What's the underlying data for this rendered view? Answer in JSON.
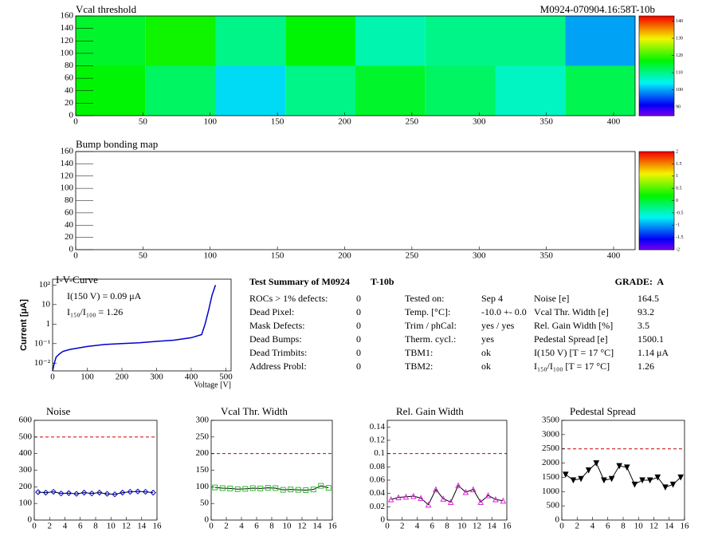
{
  "chart_data": [
    {
      "type": "heatmap",
      "title": "Vcal threshold",
      "corner_label": "M0924-070904.16:58T-10b",
      "x_bins": [
        0,
        52,
        104,
        156,
        208,
        260,
        312,
        364,
        416
      ],
      "y_bins": [
        0,
        80,
        160
      ],
      "z": [
        [
          117,
          112,
          103,
          110,
          115,
          112,
          107,
          113
        ],
        [
          115,
          118,
          110,
          117,
          108,
          110,
          110,
          100
        ]
      ],
      "xlim": [
        0,
        416
      ],
      "ylim": [
        0,
        160
      ],
      "xticks": [
        0,
        50,
        100,
        150,
        200,
        250,
        300,
        350,
        400
      ],
      "yticks": [
        0,
        20,
        40,
        60,
        80,
        100,
        120,
        140,
        160
      ],
      "zlim": [
        85,
        143
      ],
      "zticks": [
        90,
        100,
        110,
        120,
        130,
        140
      ]
    },
    {
      "type": "heatmap",
      "title": "Bump bonding map",
      "xlim": [
        0,
        416
      ],
      "ylim": [
        0,
        160
      ],
      "xticks": [
        0,
        50,
        100,
        150,
        200,
        250,
        300,
        350,
        400
      ],
      "yticks": [
        0,
        20,
        40,
        60,
        80,
        100,
        120,
        140,
        160
      ],
      "zlim": [
        -2,
        2
      ],
      "zticks": [
        -2,
        -1.5,
        -1,
        -0.5,
        0,
        0.5,
        1,
        1.5,
        2
      ]
    },
    {
      "type": "line",
      "title": "I-V-Curve",
      "x_label": "Voltage [V]",
      "y_label": "Current [μA]",
      "color": "#0000cc",
      "log_y": true,
      "annotations": [
        "I(150 V) = 0.09 μA",
        "I₁₅₀/I₁₀₀ =  1.26"
      ],
      "x": [
        0,
        5,
        10,
        20,
        30,
        50,
        100,
        150,
        200,
        250,
        300,
        350,
        400,
        430,
        440,
        450,
        460,
        470
      ],
      "values": [
        0.004,
        0.01,
        0.02,
        0.03,
        0.04,
        0.05,
        0.071,
        0.09,
        0.1,
        0.11,
        0.13,
        0.15,
        0.2,
        0.29,
        1,
        5,
        30,
        100
      ],
      "xlim": [
        0,
        515
      ],
      "ylim": [
        0.004,
        200
      ],
      "xticks": [
        0,
        100,
        200,
        300,
        400,
        500
      ],
      "yticks": [
        {
          "value": 0.01,
          "label": "10⁻²"
        },
        {
          "value": 0.1,
          "label": "10⁻¹"
        },
        1,
        10,
        {
          "value": 100,
          "label": "10²"
        }
      ]
    },
    {
      "type": "marker-line",
      "title": "Noise",
      "color": "#0000cc",
      "marker": "diamond",
      "reference_line": 500,
      "x": [
        0.5,
        1.5,
        2.5,
        3.5,
        4.5,
        5.5,
        6.5,
        7.5,
        8.5,
        9.5,
        10.5,
        11.5,
        12.5,
        13.5,
        14.5,
        15.5
      ],
      "values": [
        168,
        165,
        170,
        160,
        162,
        158,
        165,
        160,
        165,
        158,
        155,
        165,
        170,
        172,
        170,
        165
      ],
      "xlim": [
        0,
        16
      ],
      "ylim": [
        0,
        600
      ],
      "xticks": [
        0,
        2,
        4,
        6,
        8,
        10,
        12,
        14,
        16
      ],
      "yticks": [
        0,
        100,
        200,
        300,
        400,
        500,
        600
      ]
    },
    {
      "type": "marker-line",
      "title": "Vcal Thr. Width",
      "color": "#33bb33",
      "marker": "square",
      "reference_line": 200,
      "x": [
        0.5,
        1.5,
        2.5,
        3.5,
        4.5,
        5.5,
        6.5,
        7.5,
        8.5,
        9.5,
        10.5,
        11.5,
        12.5,
        13.5,
        14.5,
        15.5
      ],
      "values": [
        98,
        96,
        95,
        93,
        94,
        96,
        95,
        97,
        96,
        91,
        92,
        91,
        90,
        92,
        103,
        97
      ],
      "xlim": [
        0,
        16
      ],
      "ylim": [
        0,
        300
      ],
      "xticks": [
        0,
        2,
        4,
        6,
        8,
        10,
        12,
        14,
        16
      ],
      "yticks": [
        0,
        50,
        100,
        150,
        200,
        250,
        300
      ]
    },
    {
      "type": "marker-line",
      "title": "Rel. Gain Width",
      "color": "#dd22dd",
      "marker": "triangle",
      "reference_line": 0.1,
      "x": [
        0.5,
        1.5,
        2.5,
        3.5,
        4.5,
        5.5,
        6.5,
        7.5,
        8.5,
        9.5,
        10.5,
        11.5,
        12.5,
        13.5,
        14.5,
        15.5
      ],
      "values": [
        0.031,
        0.034,
        0.035,
        0.036,
        0.033,
        0.023,
        0.046,
        0.032,
        0.027,
        0.052,
        0.042,
        0.046,
        0.027,
        0.037,
        0.031,
        0.029
      ],
      "xlim": [
        0,
        16
      ],
      "ylim": [
        0,
        0.15
      ],
      "xticks": [
        0,
        2,
        4,
        6,
        8,
        10,
        12,
        14,
        16
      ],
      "yticks": [
        0,
        0.02,
        0.04,
        0.06,
        0.08,
        0.1,
        0.12,
        0.14
      ]
    },
    {
      "type": "marker-line",
      "title": "Pedestal Spread",
      "color": "#000000",
      "marker": "triangle-down",
      "reference_line": 2500,
      "x": [
        0.5,
        1.5,
        2.5,
        3.5,
        4.5,
        5.5,
        6.5,
        7.5,
        8.5,
        9.5,
        10.5,
        11.5,
        12.5,
        13.5,
        14.5,
        15.5
      ],
      "values": [
        1600,
        1400,
        1450,
        1750,
        2000,
        1400,
        1450,
        1900,
        1850,
        1250,
        1400,
        1400,
        1500,
        1150,
        1250,
        1500
      ],
      "xlim": [
        0,
        16
      ],
      "ylim": [
        0,
        3500
      ],
      "xticks": [
        0,
        2,
        4,
        6,
        8,
        10,
        12,
        14,
        16
      ],
      "yticks": [
        0,
        500,
        1000,
        1500,
        2000,
        2500,
        3000,
        3500
      ]
    }
  ],
  "summary": {
    "title": "Test Summary of M0924",
    "module_tag": "T-10b",
    "grade": "GRADE:  A",
    "columns": [
      [
        [
          "ROCs > 1% defects:",
          "0"
        ],
        [
          "Dead Pixel:",
          "0"
        ],
        [
          "Mask Defects:",
          "0"
        ],
        [
          "Dead Bumps:",
          "0"
        ],
        [
          "Dead Trimbits:",
          "0"
        ],
        [
          "Address Probl:",
          "0"
        ]
      ],
      [
        [
          "Tested on:",
          "Sep 4"
        ],
        [
          "Temp. [°C]:",
          "-10.0 +- 0.0"
        ],
        [
          "Trim / phCal:",
          "yes / yes"
        ],
        [
          "Therm. cycl.:",
          "yes"
        ],
        [
          "TBM1:",
          "ok"
        ],
        [
          "TBM2:",
          "ok"
        ]
      ],
      [
        [
          "Noise [e]",
          "164.5"
        ],
        [
          "Vcal Thr. Width [e]",
          "93.2"
        ],
        [
          "Rel. Gain Width [%]",
          "3.5"
        ],
        [
          "Pedestal Spread [e]",
          "1500.1"
        ],
        [
          "I(150 V) [T = 17 °C]",
          "1.14 μA"
        ],
        [
          "I₁₅₀/I₁₀₀  [T = 17 °C]",
          "1.26"
        ]
      ]
    ]
  }
}
